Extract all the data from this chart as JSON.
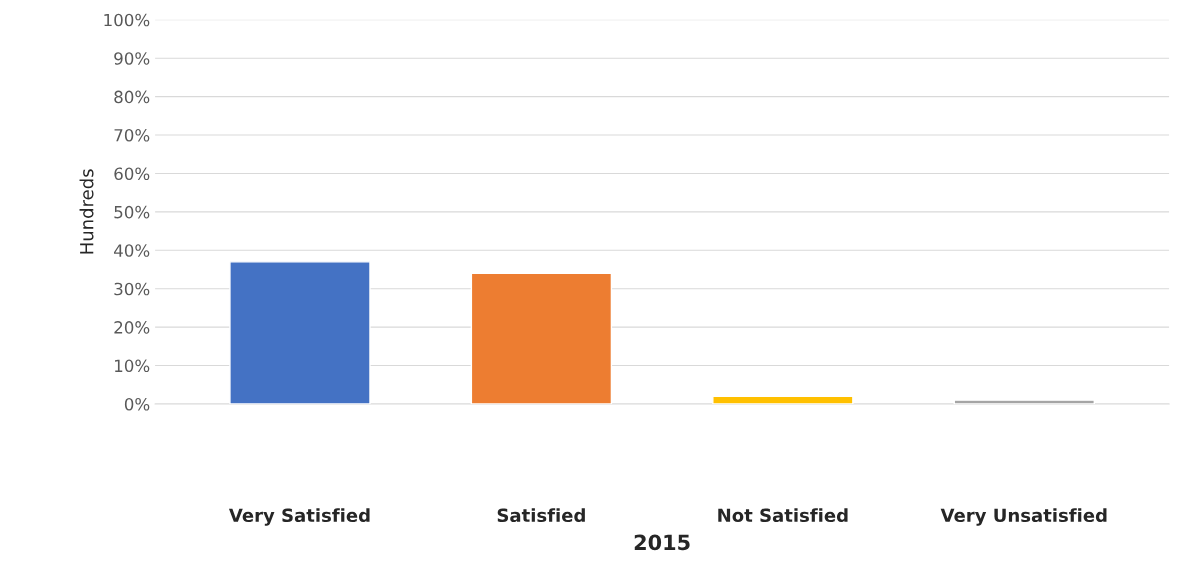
{
  "chart_data": {
    "type": "bar",
    "xlabel": "2015",
    "ylabel": "Hundreds",
    "categories": [
      "Very Satisfied",
      "Satisfied",
      "Not Satisfied",
      "Very Unsatisfied"
    ],
    "values": [
      37,
      34,
      2,
      1
    ],
    "colors": [
      "#4472c4",
      "#ed7d31",
      "#ffc000",
      "#a5a5a5"
    ],
    "ylim": [
      0,
      100
    ],
    "yticks": [
      {
        "value": 0,
        "label": "0%"
      },
      {
        "value": 10,
        "label": "10%"
      },
      {
        "value": 20,
        "label": "20%"
      },
      {
        "value": 30,
        "label": "30%"
      },
      {
        "value": 40,
        "label": "40%"
      },
      {
        "value": 50,
        "label": "50%"
      },
      {
        "value": 60,
        "label": "60%"
      },
      {
        "value": 70,
        "label": "70%"
      },
      {
        "value": 80,
        "label": "80%"
      },
      {
        "value": 90,
        "label": "90%"
      },
      {
        "value": 100,
        "label": "100%"
      }
    ],
    "grid": "y",
    "legend": false
  }
}
